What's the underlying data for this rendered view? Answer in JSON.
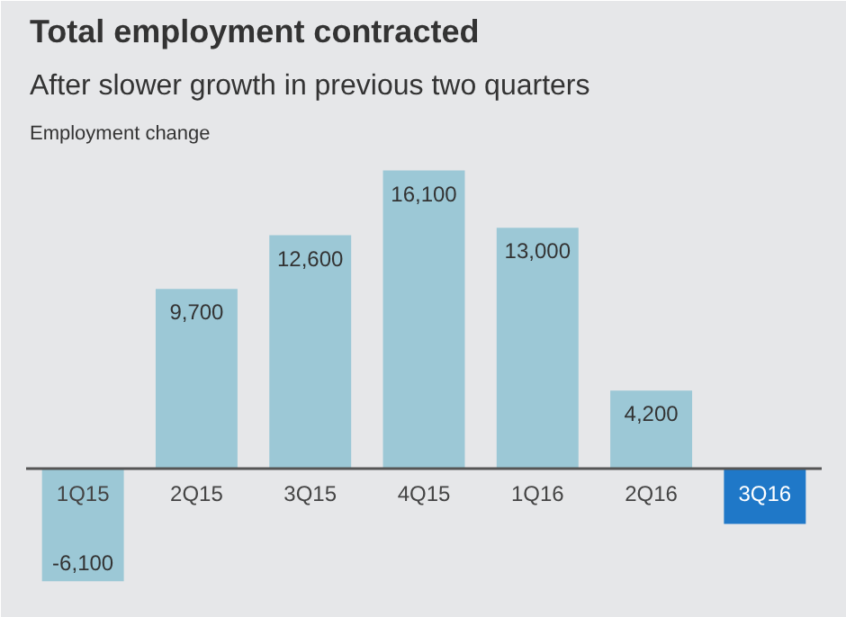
{
  "chart_data": {
    "type": "bar",
    "title": "Total employment contracted",
    "subtitle": "After slower growth in previous two quarters",
    "ylabel": "Employment change",
    "categories": [
      "1Q15",
      "2Q15",
      "3Q15",
      "4Q15",
      "1Q16",
      "2Q16",
      "3Q16"
    ],
    "values": [
      -6100,
      9700,
      12600,
      16100,
      13000,
      4200,
      -3000
    ],
    "value_labels": [
      "-6,100",
      "9,700",
      "12,600",
      "16,100",
      "13,000",
      "4,200",
      null
    ],
    "colors": [
      "#9cc8d6",
      "#9cc8d6",
      "#9cc8d6",
      "#9cc8d6",
      "#9cc8d6",
      "#9cc8d6",
      "#1f78c8"
    ],
    "ylim": [
      -7500,
      17000
    ]
  }
}
